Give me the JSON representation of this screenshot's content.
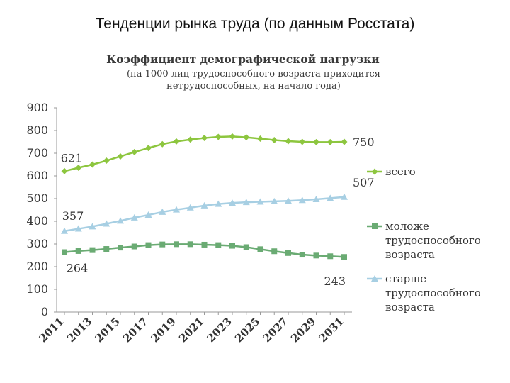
{
  "slide": {
    "title": "Тенденции рынка труда (по данным Росстата)"
  },
  "chart_data": {
    "type": "line",
    "title": "Коэффициент демографической нагрузки",
    "subtitle_lines": [
      "(на 1000 лиц трудоспособного возраста приходится",
      "нетрудоспособных, на начало года)"
    ],
    "x": [
      2011,
      2012,
      2013,
      2014,
      2015,
      2016,
      2017,
      2018,
      2019,
      2020,
      2021,
      2022,
      2023,
      2024,
      2025,
      2026,
      2027,
      2028,
      2029,
      2030,
      2031
    ],
    "x_tick_labels": [
      "2011",
      "2013",
      "2015",
      "2017",
      "2019",
      "2021",
      "2023",
      "2025",
      "2027",
      "2029",
      "2031"
    ],
    "ylim": [
      0,
      900
    ],
    "y_ticks": [
      0,
      100,
      200,
      300,
      400,
      500,
      600,
      700,
      800,
      900
    ],
    "grid": false,
    "legend_position": "right",
    "series": [
      {
        "name": "всего",
        "color": "#8dc63f",
        "marker": "diamond",
        "values": [
          621,
          636,
          650,
          667,
          686,
          705,
          723,
          740,
          752,
          760,
          767,
          772,
          774,
          770,
          764,
          758,
          753,
          750,
          749,
          749,
          750
        ],
        "labels": [
          {
            "index": 0,
            "text": "621"
          },
          {
            "index": 20,
            "text": "750"
          }
        ]
      },
      {
        "name": "моложе трудоспособного возраста",
        "legend_lines": [
          "моложе",
          "трудоспособного",
          "возраста"
        ],
        "color": "#6aab73",
        "marker": "square",
        "values": [
          264,
          269,
          273,
          278,
          284,
          289,
          295,
          298,
          299,
          299,
          297,
          295,
          292,
          286,
          277,
          268,
          260,
          253,
          249,
          246,
          243
        ],
        "labels": [
          {
            "index": 0,
            "text": "264"
          },
          {
            "index": 20,
            "text": "243"
          }
        ]
      },
      {
        "name": "старше трудоспособного возраста",
        "legend_lines": [
          "старше",
          "трудоспособного",
          "возраста"
        ],
        "color": "#a7cfe3",
        "marker": "triangle",
        "values": [
          357,
          367,
          377,
          389,
          402,
          416,
          428,
          441,
          451,
          460,
          469,
          476,
          481,
          484,
          486,
          488,
          490,
          493,
          497,
          502,
          507
        ],
        "labels": [
          {
            "index": 0,
            "text": "357"
          },
          {
            "index": 20,
            "text": "507"
          }
        ]
      }
    ]
  }
}
